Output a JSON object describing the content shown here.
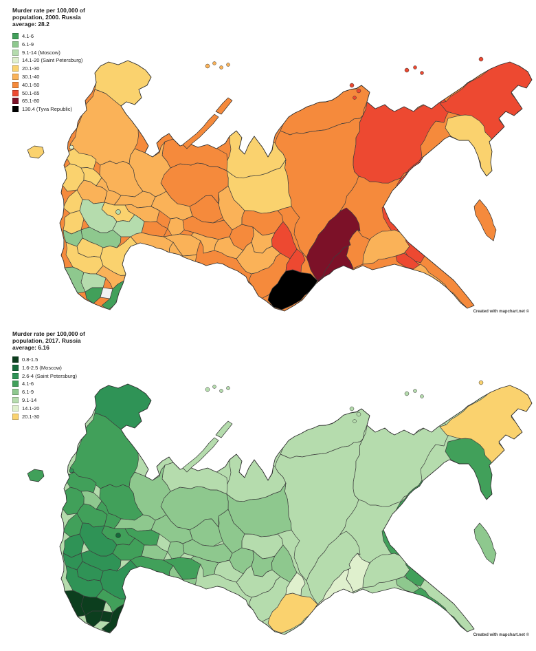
{
  "page": {
    "background": "#ffffff"
  },
  "credit": "Created with mapchart.net ©",
  "stroke_color": "#3d3d3d",
  "outline_color": "#2e2e2e",
  "palette": {
    "no-data": "#f2f2f2",
    "0.8-1.5": "#0c3e1e",
    "1.6-2.5": "#15693a",
    "2.6-4": "#2f9356",
    "4.1-6": "#41a05a",
    "6.1-9": "#8ec88e",
    "9.1-14": "#b5dcad",
    "14.1-20": "#dff0cd",
    "20.1-30": "#fad26e",
    "30.1-40": "#fab258",
    "40.1-50": "#f58a3c",
    "50.1-65": "#ed4931",
    "65.1-80": "#7c1128",
    "130.4": "#000000"
  },
  "maps": [
    {
      "title": "Murder rate per 100,000 of population, 2000. Russia average: 28.2",
      "base_bucket": "40.1-50",
      "legend": [
        {
          "label": "4.1-6",
          "bucket": "4.1-6"
        },
        {
          "label": "6.1-9",
          "bucket": "6.1-9"
        },
        {
          "label": "9.1-14 (Moscow)",
          "bucket": "9.1-14"
        },
        {
          "label": "14.1-20 (Saint Petersburg)",
          "bucket": "14.1-20"
        },
        {
          "label": "20.1-30",
          "bucket": "20.1-30"
        },
        {
          "label": "30.1-40",
          "bucket": "30.1-40"
        },
        {
          "label": "40.1-50",
          "bucket": "40.1-50"
        },
        {
          "label": "50.1-65",
          "bucket": "50.1-65"
        },
        {
          "label": "65.1-80",
          "bucket": "65.1-80"
        },
        {
          "label": "130.4 (Tyva Republic)",
          "bucket": "130.4"
        }
      ],
      "regions": {
        "taimyr": "40.1-50",
        "krasnoyarsk": "40.1-50",
        "yakutia": "50.1-65",
        "magadan": "50.1-65",
        "chukotka": "50.1-65",
        "kamchatka": "20.1-30",
        "khabarovsk": "50.1-65",
        "amur": "30.1-40",
        "jewish_ao": "50.1-65",
        "primorye": "30.1-40",
        "zabaikalsky": "40.1-50",
        "buryatia": "65.1-80",
        "irkutsk": "65.1-80",
        "yamal": "20.1-30",
        "khanty": "20.1-30",
        "tyumen": "30.1-40",
        "omsk": "40.1-50",
        "tomsk": "40.1-50",
        "novosibirsk": "30.1-40",
        "kemerovo": "50.1-65",
        "altai_krai": "30.1-40",
        "altai_rep": "40.1-50",
        "khakassia": "50.1-65",
        "tyva": "130.4",
        "komi": "40.1-50",
        "nenets": "40.1-50",
        "arkhangelsk": "30.1-40",
        "murmansk": "20.1-30",
        "karelia": "30.1-40",
        "vologda": "30.1-40",
        "perm": "40.1-50",
        "sverdlovsk": "40.1-50",
        "kirov": "30.1-40",
        "kostroma": "30.1-40",
        "yaroslavl": "30.1-40",
        "tver": "30.1-40",
        "pskov": "20.1-30",
        "leningrad": "20.1-30",
        "novgorod": "20.1-30",
        "smolensk": "20.1-30",
        "moscow_obl": "20.1-30",
        "kaluga_bryansk": "20.1-30",
        "tula_ryazan": "9.1-14",
        "lipetsk_tambov": "6.1-9",
        "kursk_belgorod": "6.1-9",
        "voronezh": "20.1-30",
        "nizhny": "30.1-40",
        "mariel_chuvash": "40.1-50",
        "mordovia_penza": "9.1-14",
        "udmurtia": "30.1-40",
        "ulyanovsk_samara": "30.1-40",
        "bashkortostan": "30.1-40",
        "chelyabinsk": "30.1-40",
        "kurgan": "30.1-40",
        "orenburg": "30.1-40",
        "saratov_volgograd": "20.1-30",
        "rostov": "20.1-30",
        "kalmykia_astr": "30.1-40",
        "krasnodar": "6.1-9",
        "stavropol": "9.1-14",
        "caucasus_west": "4.1-6",
        "chechnya": "no-data",
        "dagestan": "4.1-6",
        "kaliningrad": "20.1-30",
        "novaya_zemlya_s": "40.1-50",
        "novaya_zemlya_n": "40.1-50",
        "sakhalin": "40.1-50",
        "franz_josef": "30.1-40",
        "severnaya_zemlya": "50.1-65",
        "new_siberian": "50.1-65",
        "wrangel": "50.1-65",
        "moscow": "9.1-14",
        "saint_petersburg": "14.1-20"
      }
    },
    {
      "title": "Murder rate per 100,000 of population, 2017. Russia average: 6.16",
      "base_bucket": "9.1-14",
      "legend": [
        {
          "label": "0.8-1.5",
          "bucket": "0.8-1.5"
        },
        {
          "label": "1.6-2.5 (Moscow)",
          "bucket": "1.6-2.5"
        },
        {
          "label": "2.6-4 (Saint Petersburg)",
          "bucket": "2.6-4"
        },
        {
          "label": "4.1-6",
          "bucket": "4.1-6"
        },
        {
          "label": "6.1-9",
          "bucket": "6.1-9"
        },
        {
          "label": "9.1-14",
          "bucket": "9.1-14"
        },
        {
          "label": "14.1-20",
          "bucket": "14.1-20"
        },
        {
          "label": "20.1-30",
          "bucket": "20.1-30"
        }
      ],
      "regions": {
        "taimyr": "9.1-14",
        "krasnoyarsk": "9.1-14",
        "yakutia": "9.1-14",
        "magadan": "4.1-6",
        "chukotka": "20.1-30",
        "kamchatka": "4.1-6",
        "khabarovsk": "4.1-6",
        "amur": "9.1-14",
        "jewish_ao": "6.1-9",
        "primorye": "4.1-6",
        "zabaikalsky": "14.1-20",
        "buryatia": "14.1-20",
        "irkutsk": "9.1-14",
        "yamal": "9.1-14",
        "khanty": "6.1-9",
        "tyumen": "6.1-9",
        "omsk": "6.1-9",
        "tomsk": "9.1-14",
        "novosibirsk": "6.1-9",
        "kemerovo": "6.1-9",
        "altai_krai": "9.1-14",
        "altai_rep": "9.1-14",
        "khakassia": "14.1-20",
        "tyva": "20.1-30",
        "komi": "6.1-9",
        "nenets": "9.1-14",
        "arkhangelsk": "6.1-9",
        "murmansk": "2.6-4",
        "karelia": "4.1-6",
        "vologda": "4.1-6",
        "perm": "6.1-9",
        "sverdlovsk": "6.1-9",
        "kirov": "6.1-9",
        "kostroma": "6.1-9",
        "yaroslavl": "4.1-6",
        "tver": "4.1-6",
        "pskov": "4.1-6",
        "leningrad": "4.1-6",
        "novgorod": "6.1-9",
        "smolensk": "4.1-6",
        "moscow_obl": "4.1-6",
        "kaluga_bryansk": "2.6-4",
        "tula_ryazan": "2.6-4",
        "lipetsk_tambov": "2.6-4",
        "kursk_belgorod": "2.6-4",
        "voronezh": "2.6-4",
        "nizhny": "4.1-6",
        "mariel_chuvash": "6.1-9",
        "mordovia_penza": "4.1-6",
        "udmurtia": "6.1-9",
        "ulyanovsk_samara": "4.1-6",
        "bashkortostan": "4.1-6",
        "chelyabinsk": "6.1-9",
        "kurgan": "9.1-14",
        "orenburg": "6.1-9",
        "saratov_volgograd": "2.6-4",
        "rostov": "2.6-4",
        "kalmykia_astr": "4.1-6",
        "krasnodar": "0.8-1.5",
        "stavropol": "0.8-1.5",
        "caucasus_west": "0.8-1.5",
        "chechnya": "0.8-1.5",
        "dagestan": "0.8-1.5",
        "kaliningrad": "4.1-6",
        "novaya_zemlya_s": "9.1-14",
        "novaya_zemlya_n": "9.1-14",
        "sakhalin": "6.1-9",
        "franz_josef": "9.1-14",
        "severnaya_zemlya": "9.1-14",
        "new_siberian": "9.1-14",
        "wrangel": "20.1-30",
        "moscow": "1.6-2.5",
        "saint_petersburg": "2.6-4"
      }
    }
  ]
}
